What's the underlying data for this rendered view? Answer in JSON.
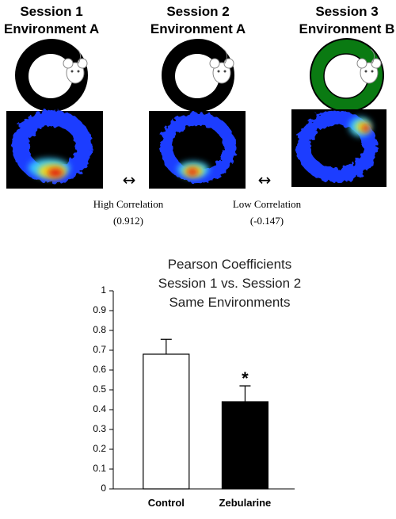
{
  "sessions": [
    {
      "title": "Session 1",
      "environment": "Environment A"
    },
    {
      "title": "Session 2",
      "environment": "Environment A"
    },
    {
      "title": "Session 3",
      "environment": "Environment B"
    }
  ],
  "correlations": [
    {
      "label": "High Correlation",
      "value": "(0.912)"
    },
    {
      "label": "Low Correlation",
      "value": "(-0.147)"
    }
  ],
  "arrow": "↔",
  "chart_data": {
    "type": "bar",
    "title": [
      "Pearson Coefficients",
      "Session 1 vs. Session 2",
      "Same Environments"
    ],
    "categories": [
      "Control",
      "Zebularine"
    ],
    "values": [
      0.68,
      0.44
    ],
    "errors": [
      0.075,
      0.08
    ],
    "colors": [
      "#ffffff",
      "#000000"
    ],
    "annotations": [
      {
        "category": 1,
        "text": "*"
      }
    ],
    "ylim": [
      0,
      1
    ],
    "yticks": [
      0,
      0.1,
      0.2,
      0.3,
      0.4,
      0.5,
      0.6,
      0.7,
      0.8,
      0.9,
      1
    ],
    "grid": false
  }
}
